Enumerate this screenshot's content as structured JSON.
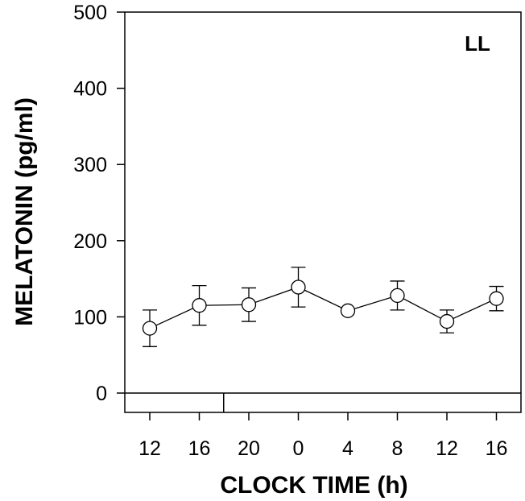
{
  "chart_data": {
    "type": "line",
    "panel_label": "LL",
    "xlabel": "CLOCK TIME (h)",
    "ylabel": "MELATONIN (pg/ml)",
    "ylim": [
      0,
      500
    ],
    "y_ticks": [
      "0",
      "100",
      "200",
      "300",
      "400",
      "500"
    ],
    "categories": [
      "12",
      "16",
      "20",
      "0",
      "4",
      "8",
      "12",
      "16"
    ],
    "series": [
      {
        "values": [
          85,
          115,
          116,
          139,
          108,
          128,
          94,
          124
        ],
        "error": [
          24,
          26,
          22,
          26,
          0,
          19,
          15,
          16
        ],
        "marker": "open-circle",
        "color": "#000000"
      }
    ],
    "light_dark_bar": {
      "dark_from_category_index": 2
    },
    "grid": false,
    "legend": "none"
  }
}
